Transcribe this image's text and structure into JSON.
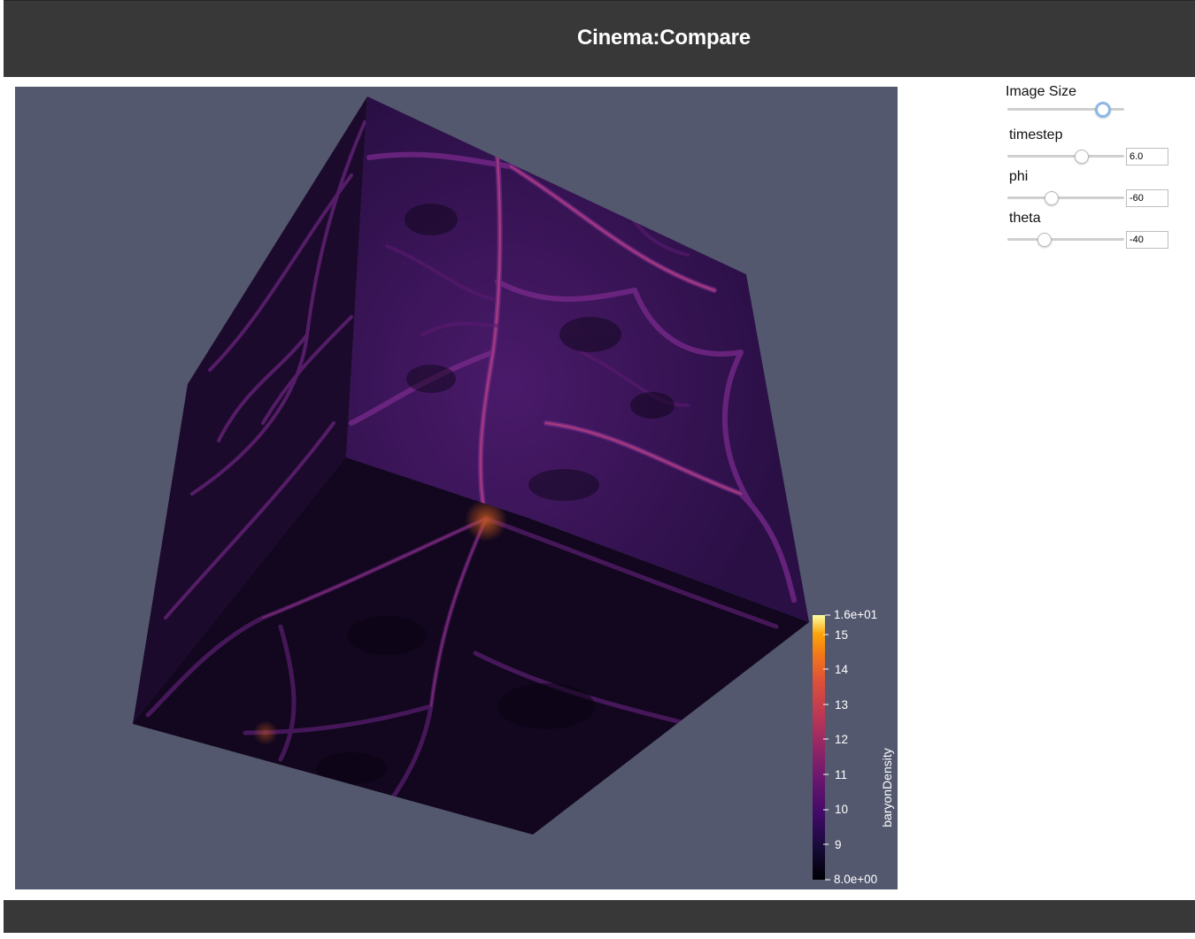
{
  "header": {
    "title": "Cinema:Compare"
  },
  "controls": {
    "image_size": {
      "label": "Image Size",
      "value_fraction": 0.83
    },
    "sliders": [
      {
        "label": "timestep",
        "value": "6.0",
        "value_fraction": 0.64
      },
      {
        "label": "phi",
        "value": "-60",
        "value_fraction": 0.38
      },
      {
        "label": "theta",
        "value": "-40",
        "value_fraction": 0.32
      }
    ]
  },
  "viewer": {
    "background_color": "#53586e",
    "colorbar": {
      "title": "baryonDensity",
      "max_label": "1.6e+01",
      "min_label": "8.0e+00",
      "tick_labels": [
        "15",
        "14",
        "13",
        "12",
        "11",
        "10",
        "9"
      ],
      "range": [
        8.0,
        16.0
      ],
      "colormap": "inferno"
    }
  }
}
